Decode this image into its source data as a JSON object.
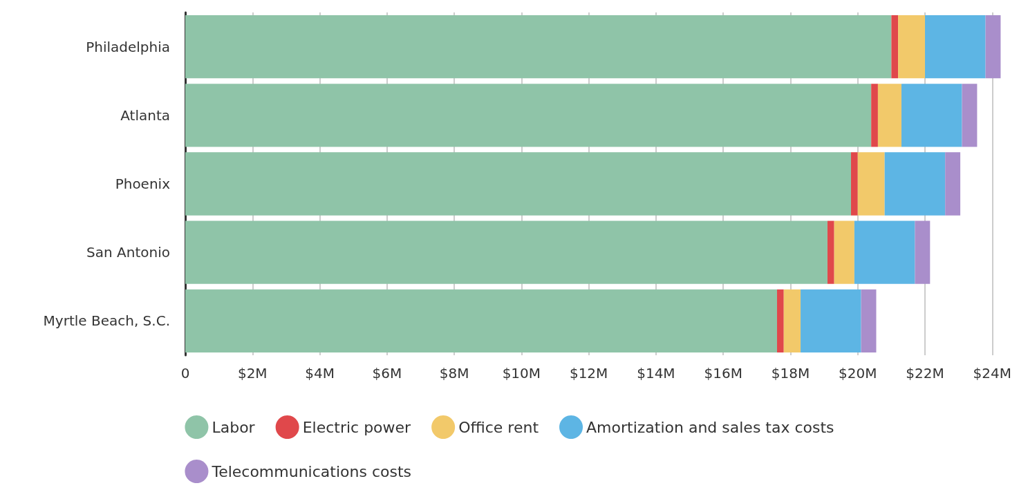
{
  "chart_data": {
    "type": "bar",
    "orientation": "horizontal",
    "stacked": true,
    "categories": [
      "Philadelphia",
      "Atlanta",
      "Phoenix",
      "San Antonio",
      "Myrtle Beach, S.C."
    ],
    "series": [
      {
        "name": "Labor",
        "color": "#8fc4a8",
        "values": [
          21.0,
          20.4,
          19.8,
          19.1,
          17.6
        ]
      },
      {
        "name": "Electric power",
        "color": "#e0484b",
        "values": [
          0.2,
          0.2,
          0.2,
          0.2,
          0.2
        ]
      },
      {
        "name": "Office rent",
        "color": "#f2c96a",
        "values": [
          0.8,
          0.7,
          0.8,
          0.6,
          0.5
        ]
      },
      {
        "name": "Amortization and sales tax costs",
        "color": "#5db5e4",
        "values": [
          1.8,
          1.8,
          1.8,
          1.8,
          1.8
        ]
      },
      {
        "name": "Telecommunications costs",
        "color": "#a98ecb",
        "values": [
          0.45,
          0.45,
          0.45,
          0.45,
          0.45
        ]
      }
    ],
    "xlim": [
      0,
      24.3
    ],
    "xticks": [
      {
        "value": 0,
        "label": "0"
      },
      {
        "value": 2,
        "label": "$2M"
      },
      {
        "value": 4,
        "label": "$4M"
      },
      {
        "value": 6,
        "label": "$6M"
      },
      {
        "value": 8,
        "label": "$8M"
      },
      {
        "value": 10,
        "label": "$10M"
      },
      {
        "value": 12,
        "label": "$12M"
      },
      {
        "value": 14,
        "label": "$14M"
      },
      {
        "value": 16,
        "label": "$16M"
      },
      {
        "value": 18,
        "label": "$18M"
      },
      {
        "value": 20,
        "label": "$20M"
      },
      {
        "value": 22,
        "label": "$22M"
      },
      {
        "value": 24,
        "label": "$24M"
      }
    ],
    "grid": "x",
    "legend": "bottom"
  }
}
